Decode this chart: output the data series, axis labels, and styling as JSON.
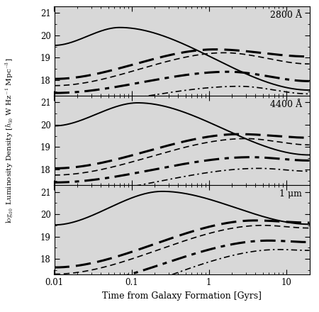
{
  "panels": [
    {
      "label": "2800 Å",
      "ylim": [
        17.3,
        21.3
      ],
      "yticks": [
        18,
        19,
        20,
        21
      ],
      "curves": [
        {
          "style": "solid",
          "lw": 1.4,
          "peak_x": 0.07,
          "start_y": 19.55,
          "peak_y": 20.35,
          "end_y": 17.55
        },
        {
          "style": "dashed_thick",
          "lw": 2.2,
          "peak_x": 1.2,
          "start_y": 18.05,
          "peak_y": 19.37,
          "end_y": 19.05
        },
        {
          "style": "dashed_thin",
          "lw": 1.2,
          "peak_x": 1.6,
          "start_y": 17.75,
          "peak_y": 19.22,
          "end_y": 18.72
        },
        {
          "style": "dashdot_thick",
          "lw": 2.2,
          "peak_x": 1.8,
          "start_y": 17.42,
          "peak_y": 18.37,
          "end_y": 17.95
        },
        {
          "style": "dashdot_thin",
          "lw": 1.2,
          "peak_x": 2.5,
          "start_y": 16.85,
          "peak_y": 17.72,
          "end_y": 17.38
        }
      ]
    },
    {
      "label": "4400 Å",
      "ylim": [
        17.3,
        21.3
      ],
      "yticks": [
        18,
        19,
        20,
        21
      ],
      "curves": [
        {
          "style": "solid",
          "lw": 1.4,
          "peak_x": 0.12,
          "start_y": 19.95,
          "peak_y": 20.98,
          "end_y": 18.65
        },
        {
          "style": "dashed_thick",
          "lw": 2.2,
          "peak_x": 2.5,
          "start_y": 18.05,
          "peak_y": 19.58,
          "end_y": 19.42
        },
        {
          "style": "dashed_thin",
          "lw": 1.2,
          "peak_x": 3.0,
          "start_y": 17.75,
          "peak_y": 19.38,
          "end_y": 19.1
        },
        {
          "style": "dashdot_thick",
          "lw": 2.2,
          "peak_x": 3.5,
          "start_y": 17.42,
          "peak_y": 18.55,
          "end_y": 18.4
        },
        {
          "style": "dashdot_thin",
          "lw": 1.2,
          "peak_x": 4.5,
          "start_y": 16.85,
          "peak_y": 18.05,
          "end_y": 17.92
        }
      ]
    },
    {
      "label": "1 μm",
      "ylim": [
        17.3,
        21.3
      ],
      "yticks": [
        18,
        19,
        20,
        21
      ],
      "curves": [
        {
          "style": "solid",
          "lw": 1.4,
          "peak_x": 0.25,
          "start_y": 19.52,
          "peak_y": 21.02,
          "end_y": 19.55
        },
        {
          "style": "dashed_thick",
          "lw": 2.2,
          "peak_x": 4.0,
          "start_y": 17.62,
          "peak_y": 19.72,
          "end_y": 19.62
        },
        {
          "style": "dashed_thin",
          "lw": 1.2,
          "peak_x": 5.0,
          "start_y": 17.32,
          "peak_y": 19.5,
          "end_y": 19.38
        },
        {
          "style": "dashdot_thick",
          "lw": 2.2,
          "peak_x": 6.0,
          "start_y": 16.7,
          "peak_y": 18.82,
          "end_y": 18.75
        },
        {
          "style": "dashdot_thin",
          "lw": 1.2,
          "peak_x": 8.0,
          "start_y": 16.0,
          "peak_y": 18.42,
          "end_y": 18.38
        }
      ]
    }
  ],
  "xlim": [
    0.01,
    20
  ],
  "xlabel": "Time from Galaxy Formation [Gyrs]",
  "ylabel": "$\\log_{10}$ Luminosity Density [$h_{50}$ W Hz$^{-1}$ Mpc$^{-3}$]",
  "bg_color": "white",
  "plot_bg_color": "#d8d8d8"
}
